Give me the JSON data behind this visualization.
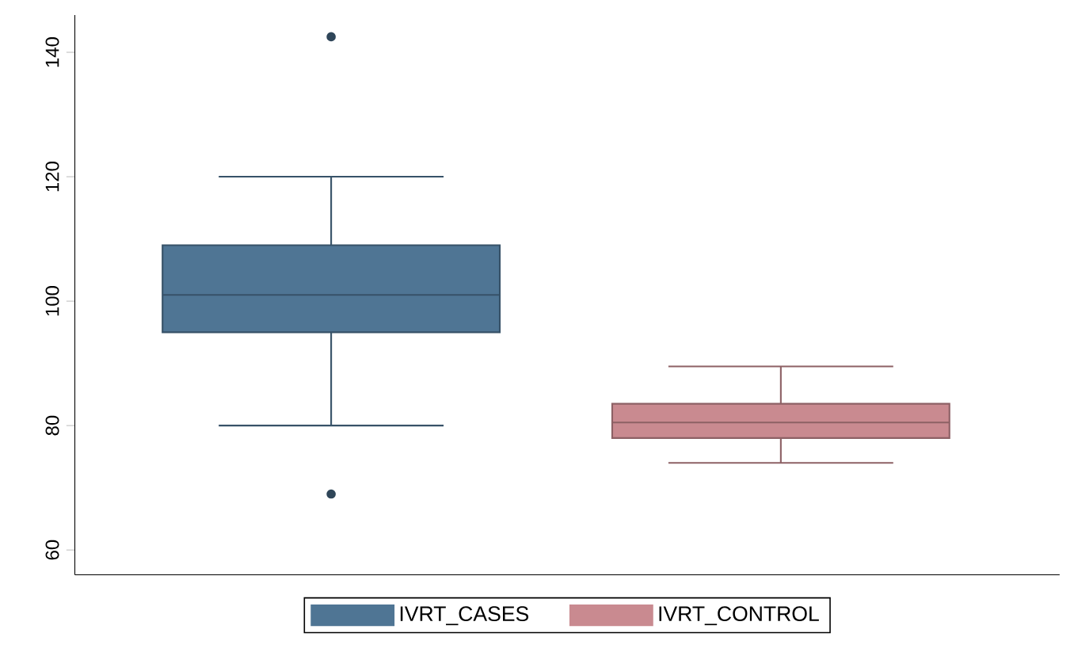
{
  "chart_data": {
    "type": "box",
    "categories": [
      null
    ],
    "series": [
      {
        "name": "IVRT_CASES",
        "color": "#4f7594",
        "boxes": [
          {
            "low": 80,
            "q1": 95,
            "median": 101,
            "q3": 109,
            "high": 120,
            "outliers": [
              142.5,
              69
            ]
          }
        ]
      },
      {
        "name": "IVRT_CONTROL",
        "color": "#c98a90",
        "boxes": [
          {
            "low": 74,
            "q1": 78,
            "median": 80.5,
            "q3": 83.5,
            "high": 89.5
          }
        ]
      }
    ],
    "ylim": [
      56,
      146
    ],
    "yticks": [
      60,
      80,
      100,
      120,
      140
    ],
    "legend": "bottom"
  }
}
